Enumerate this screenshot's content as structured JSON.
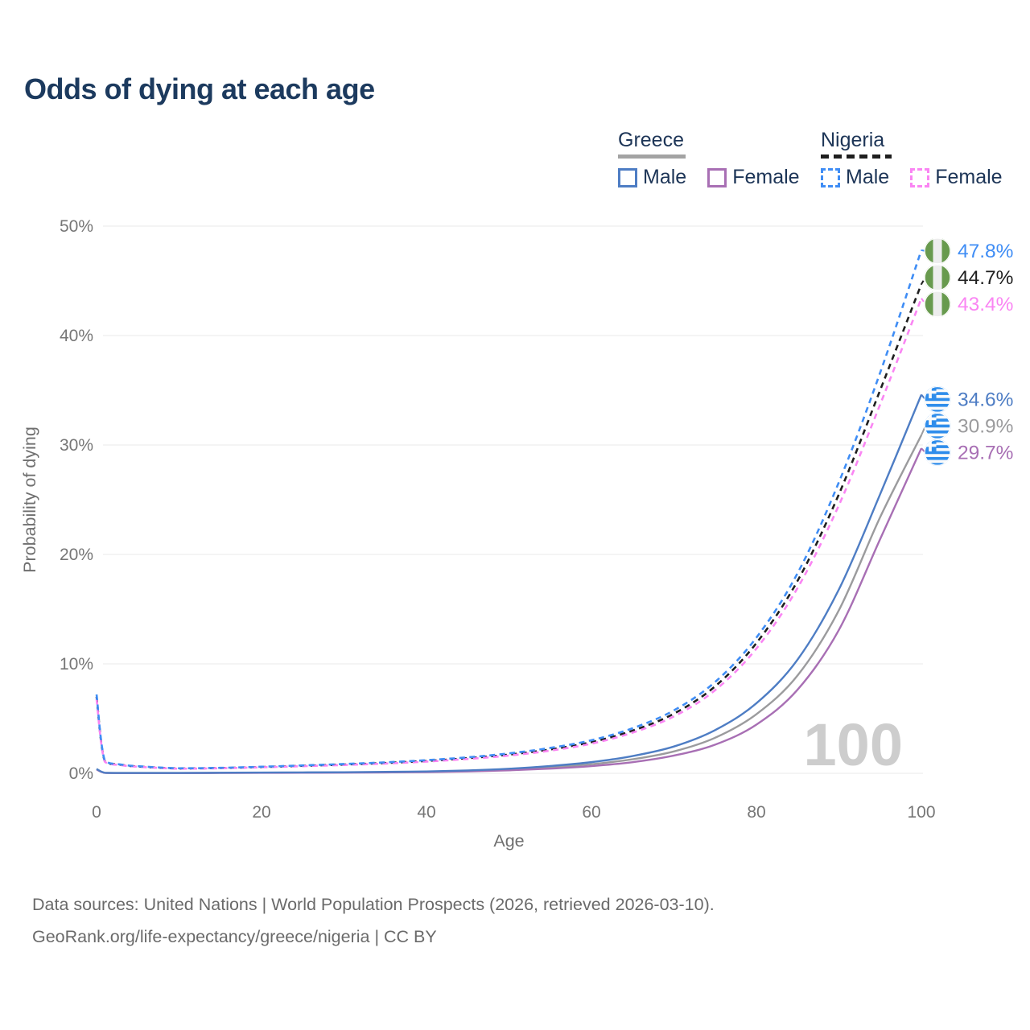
{
  "title": "Odds of dying at each age",
  "legend": {
    "groups": [
      {
        "label": "Greece",
        "line_style": "solid",
        "line_color": "#a3a3a3",
        "items": [
          {
            "label": "Male",
            "color": "#4e7dc4",
            "style": "solid"
          },
          {
            "label": "Female",
            "color": "#a86fb4",
            "style": "solid"
          }
        ]
      },
      {
        "label": "Nigeria",
        "line_style": "dashed",
        "line_color": "#1f1f1f",
        "items": [
          {
            "label": "Male",
            "color": "#3f8df5",
            "style": "dashed"
          },
          {
            "label": "Female",
            "color": "#fa85f3",
            "style": "dashed"
          }
        ]
      }
    ]
  },
  "watermark": "100",
  "footer": {
    "line1": "Data sources: United Nations | World Population Prospects (2026, retrieved 2026-03-10).",
    "line2": "GeoRank.org/life-expectancy/greece/nigeria | CC BY"
  },
  "chart_data": {
    "type": "line",
    "title": "Odds of dying at each age",
    "xlabel": "Age",
    "ylabel": "Probability of dying",
    "xlim": [
      0,
      100
    ],
    "ylim": [
      0,
      50
    ],
    "x_ticks": [
      0,
      20,
      40,
      60,
      80,
      100
    ],
    "y_ticks": [
      0,
      10,
      20,
      30,
      40,
      50
    ],
    "y_tick_suffix": "%",
    "grid": "horizontal",
    "legend_position": "top-right",
    "ages": [
      0,
      1,
      3,
      5,
      10,
      15,
      20,
      25,
      30,
      35,
      40,
      45,
      50,
      55,
      60,
      65,
      70,
      75,
      80,
      85,
      90,
      95,
      100
    ],
    "series": [
      {
        "name": "Greece",
        "country": "Greece",
        "group": "both-sexes",
        "color": "#9b9b9d",
        "dash": "solid",
        "flag": "greece",
        "end_label": "30.9%",
        "end_value": 30.9,
        "values": [
          0.37,
          0.045,
          0.027,
          0.027,
          0.027,
          0.04,
          0.055,
          0.065,
          0.08,
          0.1,
          0.14,
          0.21,
          0.34,
          0.54,
          0.83,
          1.28,
          2.0,
          3.25,
          5.4,
          8.95,
          14.9,
          23.4,
          30.9
        ]
      },
      {
        "name": "Greece Female",
        "country": "Greece",
        "group": "female",
        "color": "#a86fb4",
        "dash": "solid",
        "flag": "greece",
        "end_label": "29.7%",
        "end_value": 29.7,
        "values": [
          0.35,
          0.04,
          0.025,
          0.025,
          0.025,
          0.03,
          0.04,
          0.05,
          0.06,
          0.08,
          0.11,
          0.17,
          0.27,
          0.43,
          0.66,
          1.02,
          1.62,
          2.62,
          4.45,
          7.65,
          13.1,
          21.4,
          29.7
        ]
      },
      {
        "name": "Greece Male",
        "country": "Greece",
        "group": "male",
        "color": "#4e7dc4",
        "dash": "solid",
        "flag": "greece",
        "end_label": "34.6%",
        "end_value": 34.6,
        "values": [
          0.4,
          0.05,
          0.03,
          0.03,
          0.03,
          0.05,
          0.07,
          0.08,
          0.1,
          0.13,
          0.17,
          0.26,
          0.42,
          0.67,
          1.02,
          1.58,
          2.45,
          3.95,
          6.4,
          10.4,
          16.8,
          25.5,
          34.6
        ]
      },
      {
        "name": "Nigeria",
        "country": "Nigeria",
        "group": "both-sexes",
        "color": "#1f1f1f",
        "dash": "dashed",
        "flag": "nigeria",
        "end_label": "44.7%",
        "end_value": 44.7,
        "values": [
          7.0,
          1.1,
          0.77,
          0.62,
          0.44,
          0.48,
          0.57,
          0.68,
          0.8,
          0.94,
          1.13,
          1.38,
          1.71,
          2.18,
          2.85,
          3.9,
          5.45,
          7.95,
          11.9,
          17.6,
          25.5,
          35.0,
          44.7
        ]
      },
      {
        "name": "Nigeria Female",
        "country": "Nigeria",
        "group": "female",
        "color": "#fa85f3",
        "dash": "dashed",
        "flag": "nigeria",
        "end_label": "43.4%",
        "end_value": 43.4,
        "values": [
          6.8,
          1.06,
          0.74,
          0.6,
          0.42,
          0.46,
          0.55,
          0.65,
          0.76,
          0.89,
          1.07,
          1.31,
          1.62,
          2.07,
          2.71,
          3.72,
          5.2,
          7.6,
          11.4,
          16.95,
          24.5,
          33.7,
          43.4
        ]
      },
      {
        "name": "Nigeria Male",
        "country": "Nigeria",
        "group": "male",
        "color": "#3f8df5",
        "dash": "dashed",
        "flag": "nigeria",
        "end_label": "47.8%",
        "end_value": 47.8,
        "values": [
          7.2,
          1.15,
          0.8,
          0.65,
          0.46,
          0.5,
          0.6,
          0.72,
          0.85,
          1.0,
          1.2,
          1.46,
          1.82,
          2.32,
          3.02,
          4.12,
          5.75,
          8.35,
          12.4,
          18.3,
          26.6,
          36.6,
          47.8
        ]
      }
    ],
    "flag_colors": {
      "nigeria_green": "#689a4e",
      "nigeria_white": "#ededed",
      "greece_blue": "#2f8deb",
      "greece_white": "#fafafa"
    }
  }
}
